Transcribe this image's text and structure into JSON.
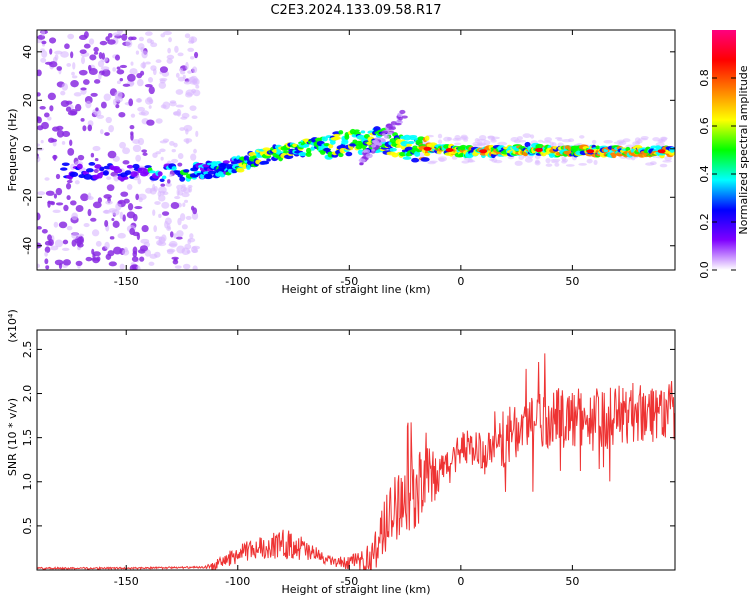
{
  "title": "C2E3.2024.133.09.58.R17",
  "chart_data": [
    {
      "type": "heatmap",
      "name": "spectrogram",
      "xlabel": "Height of straight line (km)",
      "ylabel": "Frequency (Hz)",
      "xlim": [
        -190,
        96
      ],
      "ylim": [
        -50,
        49
      ],
      "xticks": [
        -150,
        -100,
        -50,
        0,
        50
      ],
      "xtick_labels": [
        "-150",
        "-100",
        "-50",
        "0",
        "50"
      ],
      "yticks": [
        -40,
        -20,
        0,
        20,
        40
      ],
      "ytick_labels": [
        "-40",
        "-20",
        "0",
        "20",
        "40"
      ],
      "trace": {
        "x": [
          -175,
          -160,
          -145,
          -135,
          -125,
          -115,
          -105,
          -95,
          -85,
          -75,
          -65,
          -55,
          -45,
          -35,
          -30,
          -25,
          -20,
          -15,
          -10,
          0,
          10,
          20,
          30,
          40,
          50,
          60,
          70,
          80,
          90,
          95
        ],
        "frequency": [
          -9,
          -9,
          -10,
          -10,
          -10,
          -9,
          -8,
          -5,
          -2,
          0,
          1,
          2,
          3,
          4,
          2,
          1,
          0,
          0,
          0,
          -1,
          -1,
          -1,
          0,
          -1,
          -1,
          -1,
          -1,
          -1,
          -1,
          -1
        ]
      },
      "branch": {
        "x": [
          -45,
          -25
        ],
        "frequency": [
          -5,
          15
        ]
      },
      "colorbar": {
        "label": "Normalized spectral amplitude",
        "range": [
          0,
          1
        ],
        "ticks": [
          0.0,
          0.2,
          0.4,
          0.6,
          0.8
        ],
        "tick_labels": [
          "0.0",
          "0.2",
          "0.4",
          "0.6",
          "0.8"
        ],
        "colors": [
          "#ffffff",
          "#7f00ff",
          "#0000ff",
          "#00ffff",
          "#00ff00",
          "#ffff00",
          "#ff7f00",
          "#ff0000",
          "#ff007f"
        ]
      }
    },
    {
      "type": "line",
      "name": "snr",
      "xlabel": "Height of straight line (km)",
      "ylabel": "SNR (10 * v/v)",
      "yscale_label": "(x10⁴)",
      "xlim": [
        -190,
        96
      ],
      "ylim": [
        0,
        2.72
      ],
      "xticks": [
        -150,
        -100,
        -50,
        0,
        50
      ],
      "xtick_labels": [
        "-150",
        "-100",
        "-50",
        "0",
        "50"
      ],
      "yticks": [
        0.5,
        1.0,
        1.5,
        2.0,
        2.5
      ],
      "ytick_labels": [
        "0.5",
        "1.0",
        "1.5",
        "2.0",
        "2.5"
      ],
      "color": "#ee3333",
      "envelope": {
        "x": [
          -190,
          -150,
          -115,
          -110,
          -105,
          -95,
          -85,
          -75,
          -70,
          -60,
          -55,
          -45,
          -40,
          -35,
          -30,
          -25,
          -20,
          -15,
          -10,
          -5,
          0,
          5,
          10,
          15,
          20,
          25,
          30,
          35,
          40,
          50,
          60,
          70,
          80,
          90,
          96
        ],
        "y": [
          0.02,
          0.02,
          0.03,
          0.05,
          0.12,
          0.22,
          0.28,
          0.3,
          0.22,
          0.12,
          0.08,
          0.1,
          0.14,
          0.45,
          0.7,
          0.85,
          0.9,
          1.0,
          1.05,
          1.2,
          1.4,
          1.4,
          1.3,
          1.35,
          1.45,
          1.55,
          1.7,
          1.75,
          1.72,
          1.72,
          1.72,
          1.75,
          1.8,
          1.8,
          1.8
        ]
      },
      "noise": {
        "x": [
          -190,
          -115,
          -110,
          -95,
          -75,
          -60,
          -45,
          -35,
          -25,
          -15,
          -10,
          0,
          20,
          40,
          96
        ],
        "amplitude": [
          0.01,
          0.01,
          0.06,
          0.12,
          0.18,
          0.05,
          0.1,
          0.3,
          0.45,
          0.4,
          0.25,
          0.2,
          0.28,
          0.35,
          0.35
        ]
      }
    }
  ]
}
